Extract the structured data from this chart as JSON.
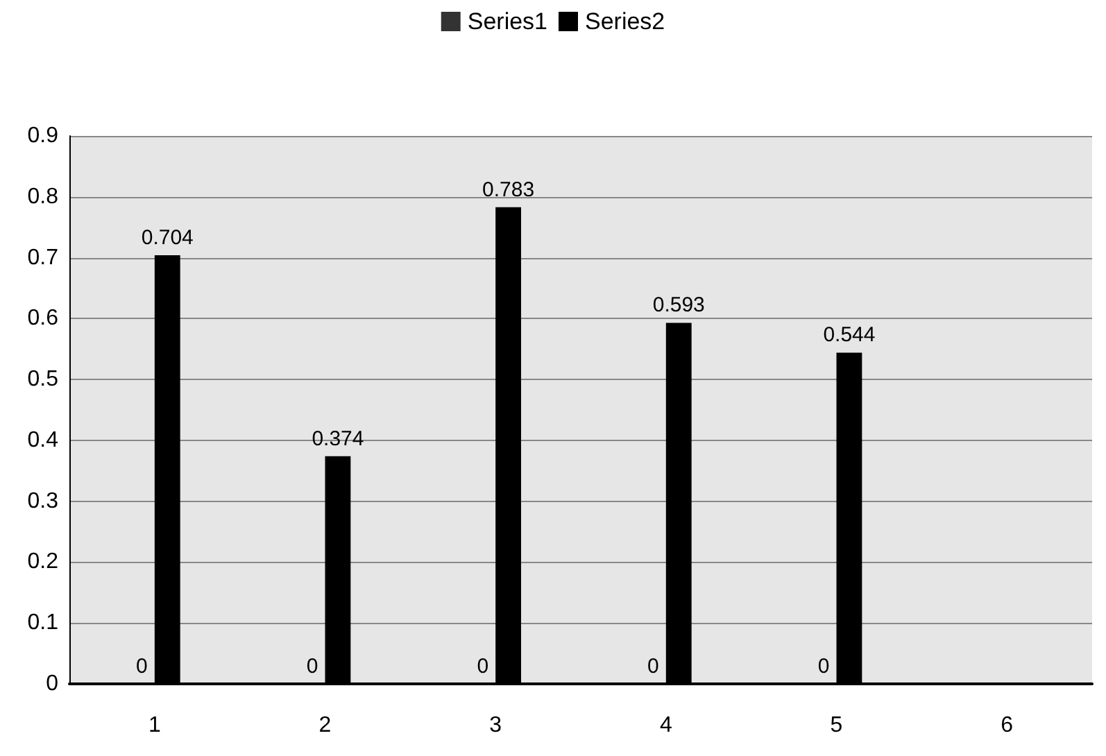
{
  "chart_data": {
    "type": "bar",
    "categories": [
      "1",
      "2",
      "3",
      "4",
      "5",
      "6"
    ],
    "series": [
      {
        "name": "Series1",
        "color": "#333333",
        "values": [
          0,
          0,
          0,
          0,
          0,
          null
        ]
      },
      {
        "name": "Series2",
        "color": "#000000",
        "values": [
          0.704,
          0.374,
          0.783,
          0.593,
          0.544,
          null
        ]
      }
    ],
    "ylim": [
      0,
      0.9
    ],
    "yticks": [
      0,
      0.1,
      0.2,
      0.3,
      0.4,
      0.5,
      0.6,
      0.7,
      0.8,
      0.9
    ],
    "grid": "y",
    "legend": "top",
    "data_labels": true
  }
}
